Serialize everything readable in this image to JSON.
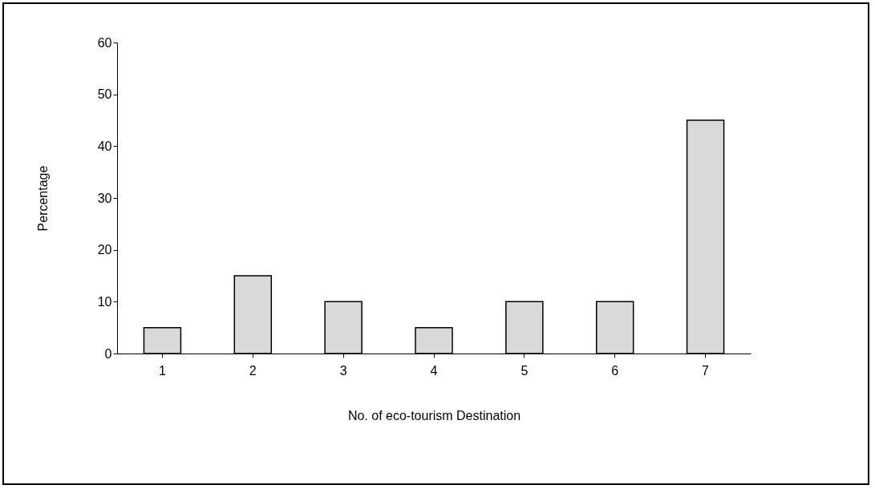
{
  "chart_data": {
    "type": "bar",
    "xlabel": "No. of eco-tourism Destination",
    "ylabel": "Percentage",
    "categories": [
      "1",
      "2",
      "3",
      "4",
      "5",
      "6",
      "7"
    ],
    "values": [
      5,
      15,
      10,
      5,
      10,
      10,
      45
    ],
    "color": "#d9d9d9",
    "ylim": [
      0,
      60
    ],
    "yticks": [
      0,
      10,
      20,
      30,
      40,
      50,
      60
    ],
    "grid": false
  }
}
